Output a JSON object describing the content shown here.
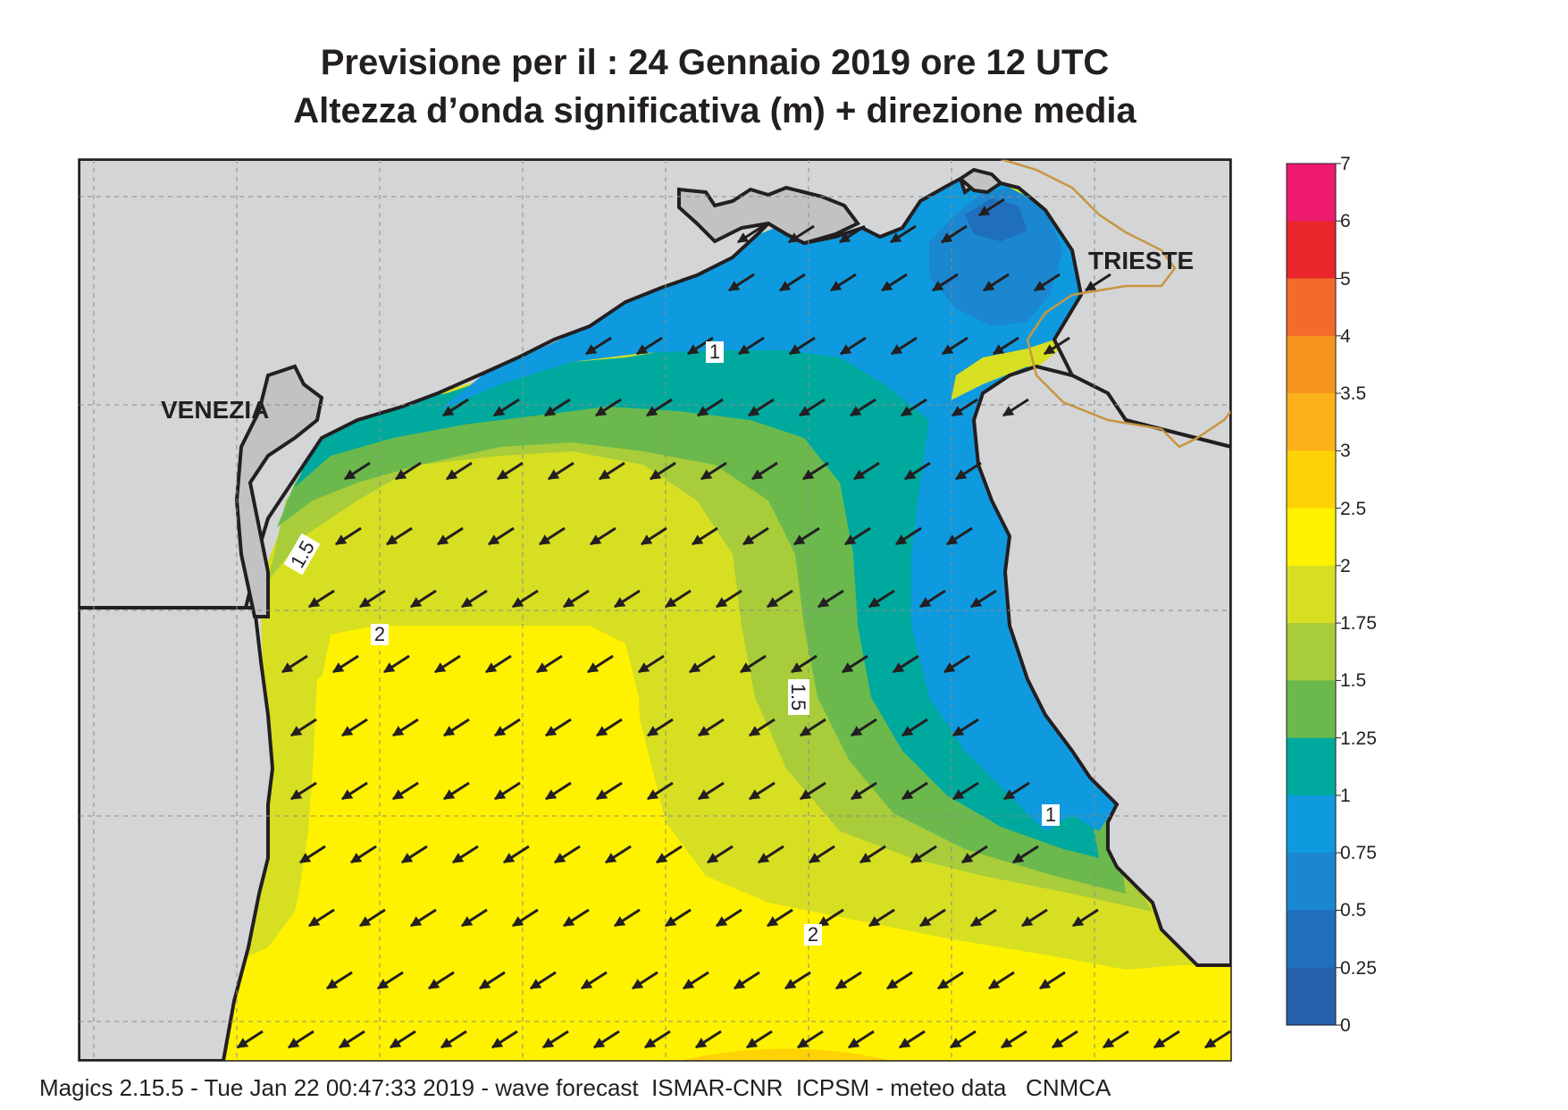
{
  "title": {
    "line1": "Previsione per il  :  24  Gennaio  2019   ore 12 UTC",
    "line2": "Altezza d’onda significativa (m) + direzione media"
  },
  "places": {
    "venezia": "VENEZIA",
    "trieste": "TRIESTE"
  },
  "contour_labels": [
    "1",
    "1.5",
    "2",
    "1.5",
    "1",
    "2"
  ],
  "colorbar": {
    "ticks": [
      "7",
      "6",
      "5",
      "4",
      "3.5",
      "3",
      "2.5",
      "2",
      "1.75",
      "1.5",
      "1.25",
      "1",
      "0.75",
      "0.5",
      "0.25",
      "0"
    ],
    "colors": [
      "#ee1a6f",
      "#e8262c",
      "#f26b2b",
      "#f7941d",
      "#fbb21a",
      "#fed204",
      "#fff200",
      "#d7df23",
      "#a8cc3a",
      "#6bb94d",
      "#00a99d",
      "#0f9adf",
      "#1a87d0",
      "#1f6fbd",
      "#2660ad"
    ]
  },
  "field_colors": {
    "land": "#d4d5d6",
    "lagoon": "#c1c2c4",
    "border": "#c7963e",
    "arrow": "#231f20"
  },
  "wave_direction": "SW",
  "footer": "Magics 2.15.5 - Tue Jan 22 00:47:33 2019 - wave forecast  ISMAR-CNR  ICPSM - meteo data   CNMCA"
}
